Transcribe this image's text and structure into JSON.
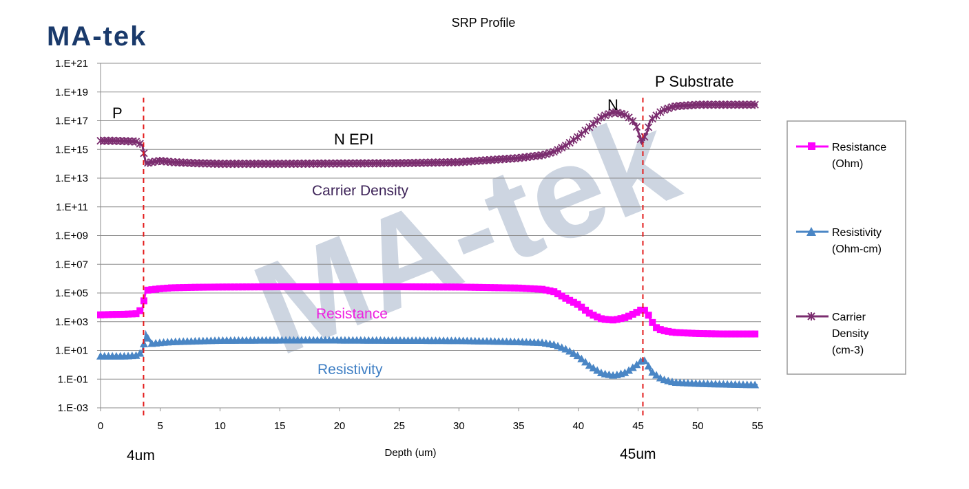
{
  "brand": {
    "logo_text": "MA-tek",
    "watermark_text": "MA-tek"
  },
  "chart_data": {
    "type": "line",
    "title": "SRP Profile",
    "xlabel": "Depth (um)",
    "ylabel": "",
    "xlim": [
      0,
      55
    ],
    "ylim": [
      0.001,
      1e+21
    ],
    "y_scale": "log",
    "grid": "horizontal",
    "legend_position": "right",
    "x_ticks": [
      "0",
      "5",
      "10",
      "15",
      "20",
      "25",
      "30",
      "35",
      "40",
      "45",
      "50",
      "55"
    ],
    "y_ticks": [
      "1.E-03",
      "1.E-01",
      "1.E+01",
      "1.E+03",
      "1.E+05",
      "1.E+07",
      "1.E+09",
      "1.E+11",
      "1.E+13",
      "1.E+15",
      "1.E+17",
      "1.E+19",
      "1.E+21"
    ],
    "series": [
      {
        "name": "Resistance (Ohm)",
        "color": "#ff00ff",
        "marker": "square",
        "points": [
          [
            0,
            3000
          ],
          [
            1,
            3200
          ],
          [
            2,
            3300
          ],
          [
            3,
            3600
          ],
          [
            3.5,
            8000
          ],
          [
            3.8,
            150000
          ],
          [
            4,
            160000
          ],
          [
            5,
            200000
          ],
          [
            6,
            230000
          ],
          [
            8,
            250000
          ],
          [
            10,
            260000
          ],
          [
            15,
            270000
          ],
          [
            20,
            270000
          ],
          [
            25,
            270000
          ],
          [
            30,
            260000
          ],
          [
            35,
            220000
          ],
          [
            37,
            180000
          ],
          [
            38,
            120000
          ],
          [
            39,
            40000
          ],
          [
            40,
            15000
          ],
          [
            41,
            3500
          ],
          [
            42,
            1500
          ],
          [
            43,
            1300
          ],
          [
            44,
            2000
          ],
          [
            45,
            5000
          ],
          [
            45.4,
            8000
          ],
          [
            45.8,
            4000
          ],
          [
            46,
            1500
          ],
          [
            46.5,
            400
          ],
          [
            47,
            250
          ],
          [
            48,
            180
          ],
          [
            50,
            150
          ],
          [
            52,
            140
          ],
          [
            55,
            140
          ]
        ]
      },
      {
        "name": "Resistivity (Ohm-cm)",
        "color": "#4a86c5",
        "marker": "triangle",
        "points": [
          [
            0,
            4
          ],
          [
            1,
            4
          ],
          [
            2,
            4
          ],
          [
            3,
            4.5
          ],
          [
            3.5,
            8
          ],
          [
            3.8,
            150
          ],
          [
            4,
            60
          ],
          [
            4.3,
            30
          ],
          [
            5,
            35
          ],
          [
            6,
            40
          ],
          [
            8,
            45
          ],
          [
            10,
            50
          ],
          [
            15,
            52
          ],
          [
            20,
            52
          ],
          [
            25,
            50
          ],
          [
            30,
            48
          ],
          [
            35,
            40
          ],
          [
            37,
            35
          ],
          [
            38,
            25
          ],
          [
            39,
            12
          ],
          [
            40,
            4
          ],
          [
            41,
            0.8
          ],
          [
            42,
            0.25
          ],
          [
            43,
            0.18
          ],
          [
            44,
            0.3
          ],
          [
            45,
            1.2
          ],
          [
            45.4,
            2.5
          ],
          [
            45.8,
            1.2
          ],
          [
            46,
            0.4
          ],
          [
            47,
            0.1
          ],
          [
            48,
            0.06
          ],
          [
            50,
            0.05
          ],
          [
            52,
            0.045
          ],
          [
            55,
            0.04
          ]
        ]
      },
      {
        "name": "Carrier Density (cm-3)",
        "color": "#7b2d6f",
        "marker": "star",
        "points": [
          [
            0,
            4000000000000000.0
          ],
          [
            1,
            4000000000000000.0
          ],
          [
            2,
            3800000000000000.0
          ],
          [
            3,
            3500000000000000.0
          ],
          [
            3.5,
            2000000000000000.0
          ],
          [
            3.8,
            100000000000000.0
          ],
          [
            4,
            120000000000000.0
          ],
          [
            5,
            160000000000000.0
          ],
          [
            6,
            130000000000000.0
          ],
          [
            8,
            110000000000000.0
          ],
          [
            10,
            100000000000000.0
          ],
          [
            15,
            100000000000000.0
          ],
          [
            20,
            105000000000000.0
          ],
          [
            25,
            110000000000000.0
          ],
          [
            30,
            130000000000000.0
          ],
          [
            35,
            250000000000000.0
          ],
          [
            37,
            400000000000000.0
          ],
          [
            38,
            700000000000000.0
          ],
          [
            39,
            2000000000000000.0
          ],
          [
            40,
            8000000000000000.0
          ],
          [
            41,
            4e+16
          ],
          [
            42,
            2e+17
          ],
          [
            43,
            4e+17
          ],
          [
            44,
            2.5e+17
          ],
          [
            44.8,
            6e+16
          ],
          [
            45.3,
            3000000000000000.0
          ],
          [
            45.8,
            2e+16
          ],
          [
            46,
            1e+17
          ],
          [
            47,
            5e+17
          ],
          [
            48,
            1e+18
          ],
          [
            50,
            1.3e+18
          ],
          [
            52,
            1.3e+18
          ],
          [
            55,
            1.3e+18
          ]
        ]
      }
    ],
    "annotations": {
      "region_p": "P",
      "region_n_epi": "N  EPI",
      "region_n": "N",
      "region_p_substrate": "P Substrate",
      "label_carrier_density": "Carrier Density",
      "label_resistance": "Resistance",
      "label_resistivity": "Resistivity",
      "boundary_1": "4um",
      "boundary_2": "45um"
    },
    "boundaries": [
      3.6,
      45.4
    ]
  },
  "legend": [
    {
      "lines": [
        "Resistance",
        "(Ohm)"
      ]
    },
    {
      "lines": [
        "Resistivity",
        "(Ohm-cm)"
      ]
    },
    {
      "lines": [
        "Carrier",
        "Density",
        "(cm-3)"
      ]
    }
  ]
}
